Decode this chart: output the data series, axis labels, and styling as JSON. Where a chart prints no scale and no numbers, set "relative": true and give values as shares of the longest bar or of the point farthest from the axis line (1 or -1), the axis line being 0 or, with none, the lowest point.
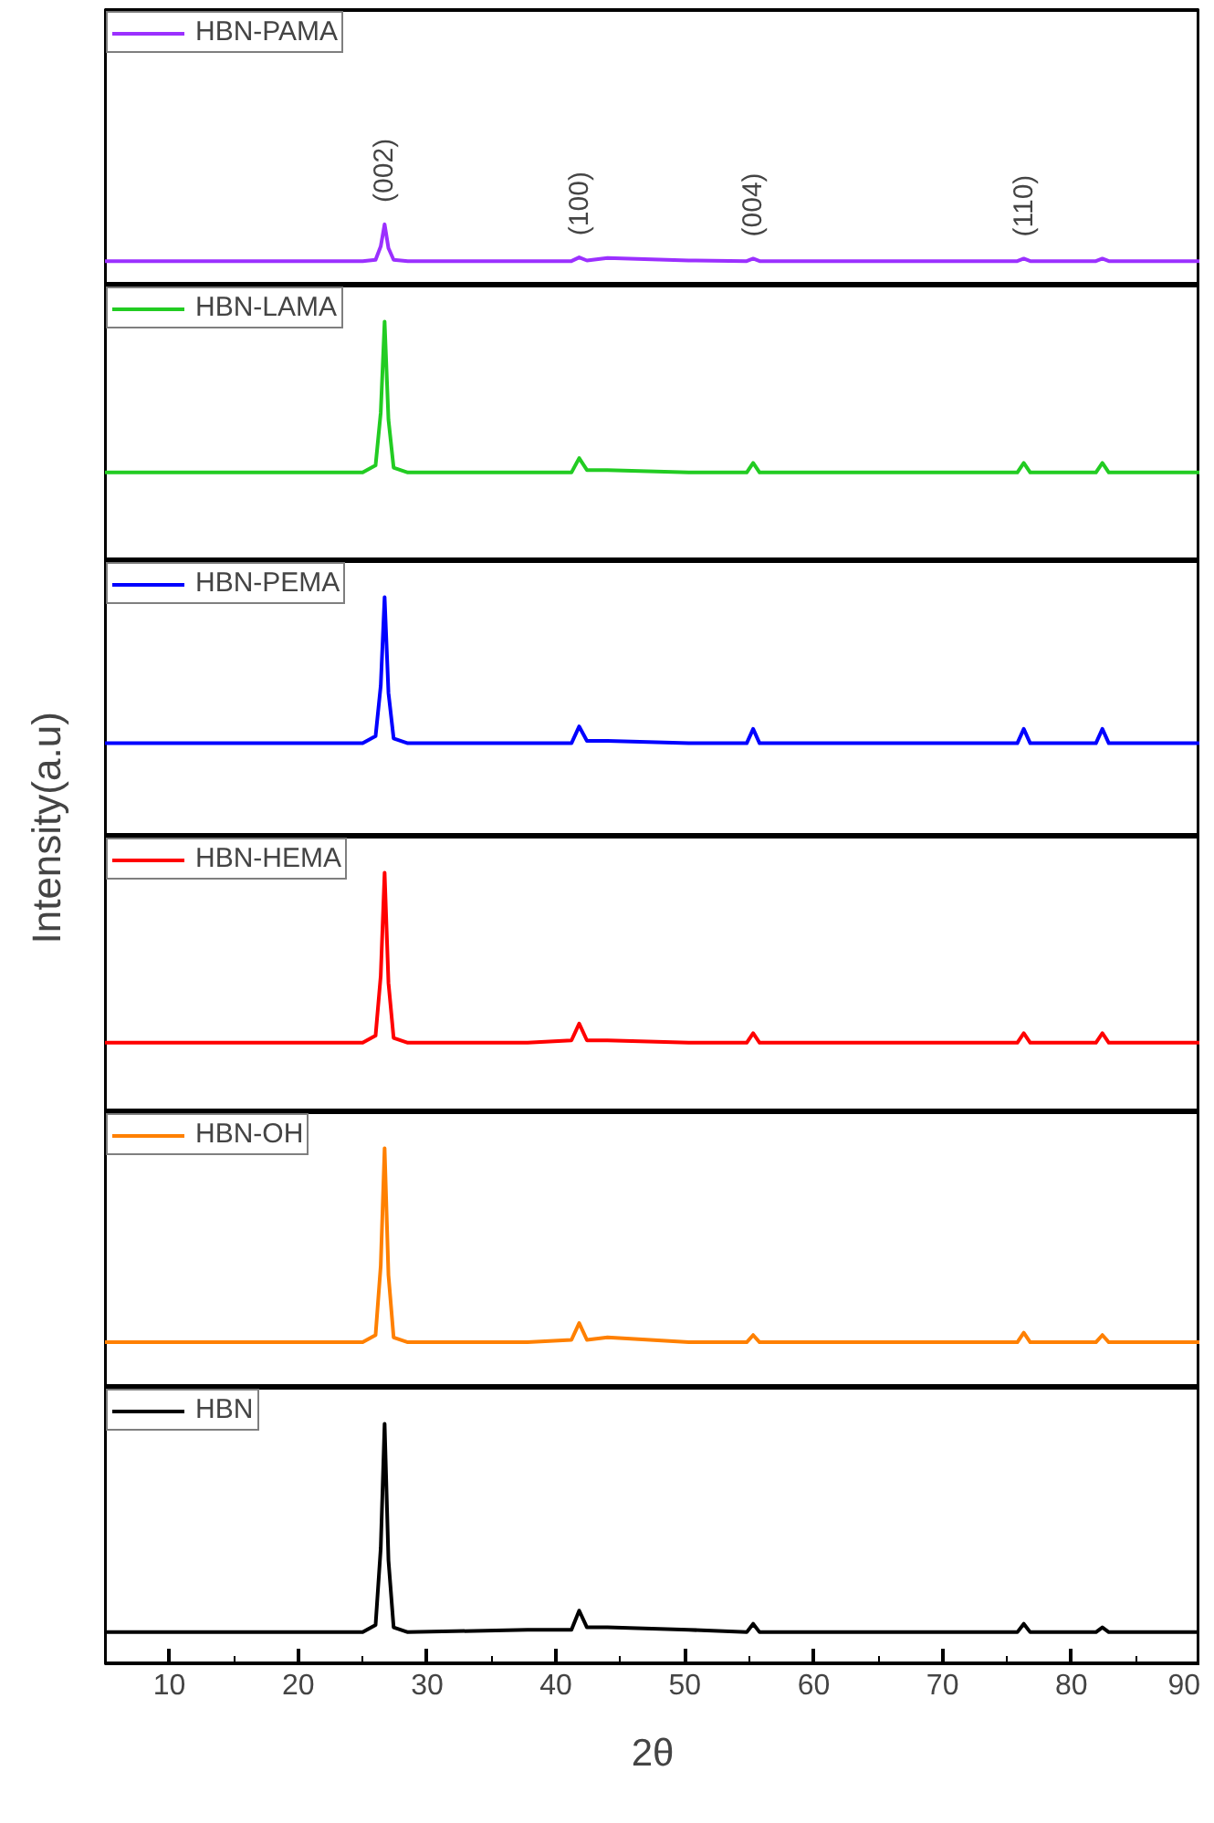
{
  "chart_data": [
    {
      "type": "line",
      "relative": true,
      "xlim": [
        5,
        90
      ],
      "tick_labels": false,
      "legend": "top left",
      "x": [
        5,
        15,
        25,
        26.0,
        26.4,
        26.7,
        27.0,
        27.4,
        28.5,
        37.8,
        41.2,
        41.8,
        42.4,
        44.0,
        50.3,
        54.8,
        55.3,
        55.8,
        66,
        75.8,
        76.3,
        76.8,
        81.9,
        82.4,
        82.9,
        90
      ],
      "series": [
        {
          "name": "HBN-PAMA",
          "color": "#9b30ff",
          "values": [
            0.4,
            0.4,
            0.4,
            0.42,
            0.64,
            1,
            0.61,
            0.42,
            0.4,
            0.4,
            0.4,
            0.46,
            0.41,
            0.45,
            0.41,
            0.4,
            0.44,
            0.4,
            0.4,
            0.4,
            0.44,
            0.4,
            0.4,
            0.44,
            0.4,
            0.4
          ]
        }
      ],
      "annotations": [
        {
          "text": "(002)",
          "x": 26.7,
          "y": 1
        },
        {
          "text": "(100)",
          "x": 41.8,
          "y": 0.46
        },
        {
          "text": "(004)",
          "x": 55.3,
          "y": 0.44
        },
        {
          "text": "(110)",
          "x": 76.3,
          "y": 0.44
        }
      ]
    },
    {
      "type": "line",
      "relative": true,
      "xlim": [
        5,
        90
      ],
      "tick_labels": false,
      "legend": "top left",
      "x": [
        5,
        15,
        25,
        26.0,
        26.4,
        26.7,
        27.0,
        27.4,
        28.5,
        37.8,
        41.2,
        41.8,
        42.4,
        44.0,
        50.3,
        54.8,
        55.3,
        55.8,
        66,
        75.8,
        76.3,
        76.8,
        81.9,
        82.4,
        82.9,
        90
      ],
      "series": [
        {
          "name": "HBN-LAMA",
          "color": "#22cc22",
          "values": [
            0.37,
            0.37,
            0.37,
            0.4,
            0.62,
            1,
            0.59,
            0.39,
            0.37,
            0.37,
            0.37,
            0.43,
            0.38,
            0.38,
            0.37,
            0.37,
            0.41,
            0.37,
            0.37,
            0.37,
            0.41,
            0.37,
            0.37,
            0.41,
            0.37,
            0.37
          ]
        }
      ]
    },
    {
      "type": "line",
      "relative": true,
      "xlim": [
        5,
        90
      ],
      "tick_labels": false,
      "legend": "top left",
      "x": [
        5,
        15,
        25,
        26.0,
        26.4,
        26.7,
        27.0,
        27.4,
        28.5,
        37.8,
        41.2,
        41.8,
        42.4,
        44.0,
        50.3,
        54.8,
        55.3,
        55.8,
        66,
        75.8,
        76.3,
        76.8,
        81.9,
        82.4,
        82.9,
        90
      ],
      "series": [
        {
          "name": "HBN-PEMA",
          "color": "#0000ff",
          "values": [
            0.39,
            0.39,
            0.39,
            0.42,
            0.63,
            1,
            0.6,
            0.41,
            0.39,
            0.39,
            0.39,
            0.46,
            0.4,
            0.4,
            0.39,
            0.39,
            0.45,
            0.39,
            0.39,
            0.39,
            0.45,
            0.39,
            0.39,
            0.45,
            0.39,
            0.39
          ]
        }
      ]
    },
    {
      "type": "line",
      "relative": true,
      "xlim": [
        5,
        90
      ],
      "tick_labels": false,
      "legend": "top left",
      "x": [
        5,
        15,
        25,
        26.0,
        26.4,
        26.7,
        27.0,
        27.4,
        28.5,
        37.8,
        41.2,
        41.8,
        42.4,
        44.0,
        50.3,
        54.8,
        55.3,
        55.8,
        66,
        75.8,
        76.3,
        76.8,
        81.9,
        82.4,
        82.9,
        90
      ],
      "series": [
        {
          "name": "HBN-HEMA",
          "color": "#ff0000",
          "values": [
            0.29,
            0.29,
            0.29,
            0.32,
            0.57,
            1,
            0.54,
            0.31,
            0.29,
            0.29,
            0.3,
            0.37,
            0.3,
            0.3,
            0.29,
            0.29,
            0.33,
            0.29,
            0.29,
            0.29,
            0.33,
            0.29,
            0.29,
            0.33,
            0.29,
            0.29
          ]
        }
      ]
    },
    {
      "type": "line",
      "relative": true,
      "xlim": [
        5,
        90
      ],
      "tick_labels": false,
      "legend": "top left",
      "ylabel": "Intensity(a.u)",
      "x": [
        5,
        15,
        25,
        26.0,
        26.4,
        26.7,
        27.0,
        27.4,
        28.5,
        37.8,
        41.2,
        41.8,
        42.4,
        44.0,
        50.3,
        54.8,
        55.3,
        55.8,
        66,
        75.8,
        76.3,
        76.8,
        81.9,
        82.4,
        82.9,
        90
      ],
      "series": [
        {
          "name": "HBN-OH",
          "color": "#ff8000",
          "values": [
            0.19,
            0.19,
            0.19,
            0.22,
            0.51,
            1,
            0.47,
            0.21,
            0.19,
            0.19,
            0.2,
            0.27,
            0.2,
            0.21,
            0.19,
            0.19,
            0.22,
            0.19,
            0.19,
            0.19,
            0.23,
            0.19,
            0.19,
            0.22,
            0.19,
            0.19
          ]
        }
      ]
    },
    {
      "type": "line",
      "relative": true,
      "xlim": [
        5,
        90
      ],
      "tick_labels": "x",
      "legend": "top left",
      "xlabel": "2θ",
      "xticks": [
        10,
        {
          "value": 15,
          "label": null
        },
        20,
        {
          "value": 25,
          "label": null
        },
        30,
        {
          "value": 35,
          "label": null
        },
        40,
        {
          "value": 45,
          "label": null
        },
        50,
        {
          "value": 55,
          "label": null
        },
        60,
        {
          "value": 65,
          "label": null
        },
        70,
        {
          "value": 75,
          "label": null
        },
        80,
        {
          "value": 85,
          "label": null
        },
        90
      ],
      "x": [
        5,
        15,
        25,
        26.0,
        26.4,
        26.7,
        27.0,
        27.4,
        28.5,
        37.8,
        41.2,
        41.8,
        42.4,
        44.0,
        50.3,
        54.8,
        55.3,
        55.8,
        66,
        75.8,
        76.3,
        76.8,
        81.9,
        82.4,
        82.9,
        90
      ],
      "series": [
        {
          "name": "HBN",
          "color": "#000000",
          "values": [
            0.13,
            0.13,
            0.13,
            0.16,
            0.48,
            1,
            0.43,
            0.15,
            0.13,
            0.14,
            0.14,
            0.22,
            0.15,
            0.15,
            0.14,
            0.13,
            0.165,
            0.13,
            0.13,
            0.13,
            0.165,
            0.13,
            0.13,
            0.15,
            0.13,
            0.13
          ]
        }
      ]
    }
  ]
}
